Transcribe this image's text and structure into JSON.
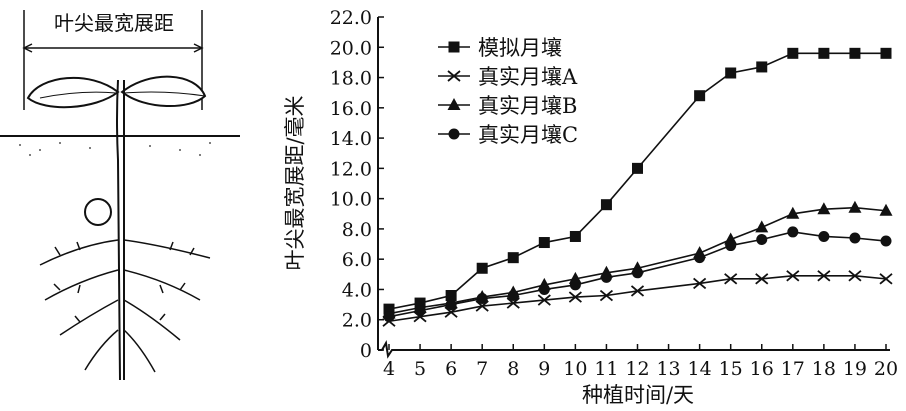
{
  "diagram": {
    "label": "叶尖最宽展距"
  },
  "chart_data": {
    "type": "line",
    "title": "",
    "xlabel": "种植时间/天",
    "ylabel": "叶尖最宽展距/毫米",
    "xlim": [
      4,
      20
    ],
    "ylim": [
      0,
      22
    ],
    "x_ticks": [
      4,
      5,
      6,
      7,
      8,
      9,
      10,
      11,
      12,
      13,
      14,
      15,
      16,
      17,
      18,
      19,
      20
    ],
    "y_ticks": [
      "0",
      "2.0",
      "4.0",
      "6.0",
      "8.0",
      "10.0",
      "12.0",
      "14.0",
      "16.0",
      "18.0",
      "20.0",
      "22.0"
    ],
    "grid": false,
    "legend_position": "top-left",
    "x": [
      4,
      5,
      6,
      7,
      8,
      9,
      10,
      11,
      12,
      14,
      15,
      16,
      17,
      18,
      19,
      20
    ],
    "series": [
      {
        "name": "模拟月壤",
        "marker": "square",
        "values": [
          2.7,
          3.1,
          3.6,
          5.4,
          6.1,
          7.1,
          7.5,
          9.6,
          12.0,
          16.8,
          18.3,
          18.7,
          19.6,
          19.6,
          19.6,
          19.6
        ]
      },
      {
        "name": "真实月壤A",
        "marker": "x",
        "values": [
          1.9,
          2.2,
          2.5,
          2.9,
          3.1,
          3.3,
          3.5,
          3.6,
          3.9,
          4.4,
          4.7,
          4.7,
          4.9,
          4.9,
          4.9,
          4.7
        ]
      },
      {
        "name": "真实月壤B",
        "marker": "triangle",
        "values": [
          2.4,
          2.8,
          3.1,
          3.5,
          3.8,
          4.3,
          4.7,
          5.1,
          5.4,
          6.4,
          7.3,
          8.1,
          9.0,
          9.3,
          9.4,
          9.2
        ]
      },
      {
        "name": "真实月壤C",
        "marker": "circle",
        "values": [
          2.2,
          2.6,
          3.0,
          3.4,
          3.6,
          4.0,
          4.3,
          4.8,
          5.1,
          6.1,
          6.9,
          7.3,
          7.8,
          7.5,
          7.4,
          7.2
        ]
      }
    ]
  }
}
